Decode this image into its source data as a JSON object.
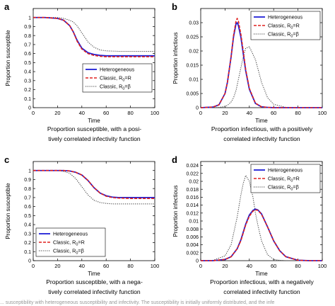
{
  "panels": [
    {
      "letter": "a",
      "caption_line1": "Proportion susceptible, with a posi-",
      "caption_line2": "tively correlated infectivity function"
    },
    {
      "letter": "b",
      "caption_line1": "Proportion infectious, with a positively",
      "caption_line2": "correlated infectivity function"
    },
    {
      "letter": "c",
      "caption_line1": "Proportion susceptible, with a nega-",
      "caption_line2": "tively correlated infectivity function"
    },
    {
      "letter": "d",
      "caption_line1": "Proportion infectious, with a negatively",
      "caption_line2": "correlated infectivity function"
    }
  ],
  "footer_text": "... susceptibility with heterogeneous susceptibility and infectivity. The susceptibility is initially uniformly distributed, and the infe",
  "colors": {
    "heterogeneous": "#1f1fd6",
    "classic_r": "#e0201e",
    "classic_beta": "#333333"
  },
  "chart_data": [
    {
      "type": "line",
      "title": "",
      "xlabel": "Time",
      "ylabel": "Proportion susceptible",
      "xlim": [
        0,
        100
      ],
      "ylim": [
        0,
        1.1
      ],
      "xticks": [
        0,
        20,
        40,
        60,
        80,
        100
      ],
      "xtick_labels": [
        "0",
        "20",
        "40",
        "60",
        "80",
        "100"
      ],
      "yticks": [
        0,
        0.1,
        0.2,
        0.3,
        0.4,
        0.5,
        0.6,
        0.7,
        0.8,
        0.9,
        1
      ],
      "ytick_labels": [
        "0",
        "0.1",
        "0.2",
        "0.3",
        "0.4",
        "0.5",
        "0.6",
        "0.7",
        "0.8",
        "0.9",
        "1"
      ],
      "grid": false,
      "legend_position": "bottom-right",
      "x": [
        0,
        10,
        20,
        25,
        30,
        33,
        36,
        40,
        45,
        50,
        55,
        60,
        70,
        80,
        90,
        100
      ],
      "series": [
        {
          "name": "Heterogeneous",
          "style": "solid",
          "values": [
            1,
            1,
            0.99,
            0.97,
            0.91,
            0.84,
            0.75,
            0.66,
            0.61,
            0.59,
            0.58,
            0.575,
            0.575,
            0.575,
            0.575,
            0.575
          ]
        },
        {
          "name": "Classic, R0=R",
          "style": "dashed",
          "values": [
            1,
            1,
            0.99,
            0.97,
            0.91,
            0.84,
            0.74,
            0.65,
            0.6,
            0.58,
            0.57,
            0.565,
            0.565,
            0.565,
            0.565,
            0.565
          ]
        },
        {
          "name": "Classic, R0=β",
          "style": "dotted",
          "values": [
            1,
            1,
            1,
            0.99,
            0.97,
            0.95,
            0.91,
            0.83,
            0.73,
            0.67,
            0.64,
            0.63,
            0.625,
            0.625,
            0.625,
            0.625
          ]
        }
      ],
      "legend_labels": [
        {
          "prefix": "Heterogeneous",
          "sub": "",
          "suffix": ""
        },
        {
          "prefix": "Classic, R",
          "sub": "0",
          "suffix": "=R"
        },
        {
          "prefix": "Classic, R",
          "sub": "0",
          "suffix": "=β"
        }
      ]
    },
    {
      "type": "line",
      "title": "",
      "xlabel": "Time",
      "ylabel": "Proportion infectious",
      "xlim": [
        0,
        100
      ],
      "ylim": [
        0,
        0.035
      ],
      "xticks": [
        0,
        20,
        40,
        60,
        80,
        100
      ],
      "xtick_labels": [
        "0",
        "20",
        "40",
        "60",
        "80",
        "100"
      ],
      "yticks": [
        0,
        0.005,
        0.01,
        0.015,
        0.02,
        0.025,
        0.03
      ],
      "ytick_labels": [
        "0",
        "0.005",
        "0.01",
        "0.015",
        "0.02",
        "0.025",
        "0.03"
      ],
      "grid": false,
      "legend_position": "top-right",
      "x": [
        0,
        10,
        15,
        20,
        22,
        25,
        27,
        29,
        30,
        31,
        33,
        35,
        37,
        40,
        45,
        50,
        55,
        60,
        70,
        80,
        90,
        100
      ],
      "series": [
        {
          "name": "Heterogeneous",
          "style": "solid",
          "values": [
            0,
            0.0002,
            0.001,
            0.005,
            0.009,
            0.018,
            0.025,
            0.0295,
            0.03,
            0.029,
            0.025,
            0.019,
            0.013,
            0.0065,
            0.0015,
            0.0003,
            0.0001,
            0,
            0,
            0,
            0,
            0
          ]
        },
        {
          "name": "Classic, R0=R",
          "style": "dashed",
          "values": [
            0,
            0.0002,
            0.001,
            0.005,
            0.009,
            0.018,
            0.0255,
            0.0305,
            0.0315,
            0.0305,
            0.026,
            0.02,
            0.0135,
            0.0068,
            0.0016,
            0.0003,
            0.0001,
            0,
            0,
            0,
            0,
            0
          ]
        },
        {
          "name": "Classic, R0=β",
          "style": "dotted",
          "values": [
            0,
            0,
            0.0001,
            0.0004,
            0.0008,
            0.002,
            0.0035,
            0.006,
            0.008,
            0.01,
            0.014,
            0.018,
            0.021,
            0.0215,
            0.017,
            0.009,
            0.0035,
            0.0012,
            0.0001,
            0,
            0,
            0
          ]
        }
      ],
      "legend_labels": [
        {
          "prefix": "Heterogeneous",
          "sub": "",
          "suffix": ""
        },
        {
          "prefix": "Classic, R",
          "sub": "0",
          "suffix": "=R"
        },
        {
          "prefix": "Classic, R",
          "sub": "0",
          "suffix": "=β"
        }
      ]
    },
    {
      "type": "line",
      "title": "",
      "xlabel": "Time",
      "ylabel": "Proportion susceptible",
      "xlim": [
        0,
        100
      ],
      "ylim": [
        0,
        1.1
      ],
      "xticks": [
        0,
        20,
        40,
        60,
        80,
        100
      ],
      "xtick_labels": [
        "0",
        "20",
        "40",
        "60",
        "80",
        "100"
      ],
      "yticks": [
        0,
        0.1,
        0.2,
        0.3,
        0.4,
        0.5,
        0.6,
        0.7,
        0.8,
        0.9,
        1
      ],
      "ytick_labels": [
        "0",
        "0.1",
        "0.2",
        "0.3",
        "0.4",
        "0.5",
        "0.6",
        "0.7",
        "0.8",
        "0.9",
        "1"
      ],
      "grid": false,
      "legend_position": "bottom-left",
      "x": [
        0,
        10,
        20,
        25,
        30,
        35,
        40,
        45,
        50,
        55,
        60,
        65,
        70,
        80,
        90,
        100
      ],
      "series": [
        {
          "name": "Heterogeneous",
          "style": "solid",
          "values": [
            1,
            1,
            1,
            1,
            0.995,
            0.98,
            0.95,
            0.89,
            0.81,
            0.75,
            0.72,
            0.705,
            0.7,
            0.7,
            0.7,
            0.7
          ]
        },
        {
          "name": "Classic, R0=R",
          "style": "dashed",
          "values": [
            1,
            1,
            1,
            1,
            0.995,
            0.98,
            0.95,
            0.89,
            0.81,
            0.75,
            0.715,
            0.7,
            0.695,
            0.69,
            0.69,
            0.69
          ]
        },
        {
          "name": "Classic, R0=β",
          "style": "dotted",
          "values": [
            1,
            1,
            1,
            0.99,
            0.97,
            0.91,
            0.82,
            0.73,
            0.67,
            0.645,
            0.635,
            0.63,
            0.63,
            0.63,
            0.63,
            0.63
          ]
        }
      ],
      "legend_labels": [
        {
          "prefix": "Heterogeneous",
          "sub": "",
          "suffix": ""
        },
        {
          "prefix": "Classic, R",
          "sub": "0",
          "suffix": "=R"
        },
        {
          "prefix": "Classic, R",
          "sub": "0",
          "suffix": "=β"
        }
      ]
    },
    {
      "type": "line",
      "title": "",
      "xlabel": "Time",
      "ylabel": "Proportion infectious",
      "xlim": [
        0,
        100
      ],
      "ylim": [
        0,
        0.025
      ],
      "xticks": [
        0,
        20,
        40,
        60,
        80,
        100
      ],
      "xtick_labels": [
        "0",
        "20",
        "40",
        "60",
        "80",
        "100"
      ],
      "yticks": [
        0,
        0.002,
        0.004,
        0.006,
        0.008,
        0.01,
        0.012,
        0.014,
        0.016,
        0.018,
        0.02,
        0.022,
        0.024
      ],
      "ytick_labels": [
        "0",
        "0.002",
        "0.004",
        "0.006",
        "0.008",
        "0.01",
        "0.012",
        "0.014",
        "0.016",
        "0.018",
        "0.02",
        "0.022",
        "0.024"
      ],
      "grid": false,
      "legend_position": "top-right",
      "x": [
        0,
        10,
        20,
        25,
        30,
        33,
        35,
        37,
        40,
        43,
        45,
        47,
        50,
        55,
        60,
        65,
        70,
        80,
        90,
        100
      ],
      "series": [
        {
          "name": "Heterogeneous",
          "style": "solid",
          "values": [
            0,
            0,
            0.0003,
            0.001,
            0.003,
            0.0052,
            0.0072,
            0.0092,
            0.0115,
            0.0127,
            0.013,
            0.0128,
            0.0118,
            0.0085,
            0.005,
            0.0025,
            0.001,
            0.0001,
            0,
            0
          ]
        },
        {
          "name": "Classic, R0=R",
          "style": "dashed",
          "values": [
            0,
            0,
            0.0003,
            0.001,
            0.003,
            0.005,
            0.007,
            0.009,
            0.0112,
            0.0125,
            0.0128,
            0.0127,
            0.0117,
            0.0085,
            0.005,
            0.0025,
            0.001,
            0.0001,
            0,
            0
          ]
        },
        {
          "name": "Classic, R0=β",
          "style": "dotted",
          "values": [
            0,
            0.0001,
            0.0012,
            0.004,
            0.011,
            0.0165,
            0.0195,
            0.0215,
            0.02,
            0.016,
            0.012,
            0.009,
            0.005,
            0.0015,
            0.0003,
            0.0001,
            0,
            0,
            0,
            0
          ]
        }
      ],
      "legend_labels": [
        {
          "prefix": "Heterogeneous",
          "sub": "",
          "suffix": ""
        },
        {
          "prefix": "Classic, R",
          "sub": "0",
          "suffix": "=R"
        },
        {
          "prefix": "Classic, R",
          "sub": "0",
          "suffix": "=β"
        }
      ]
    }
  ]
}
